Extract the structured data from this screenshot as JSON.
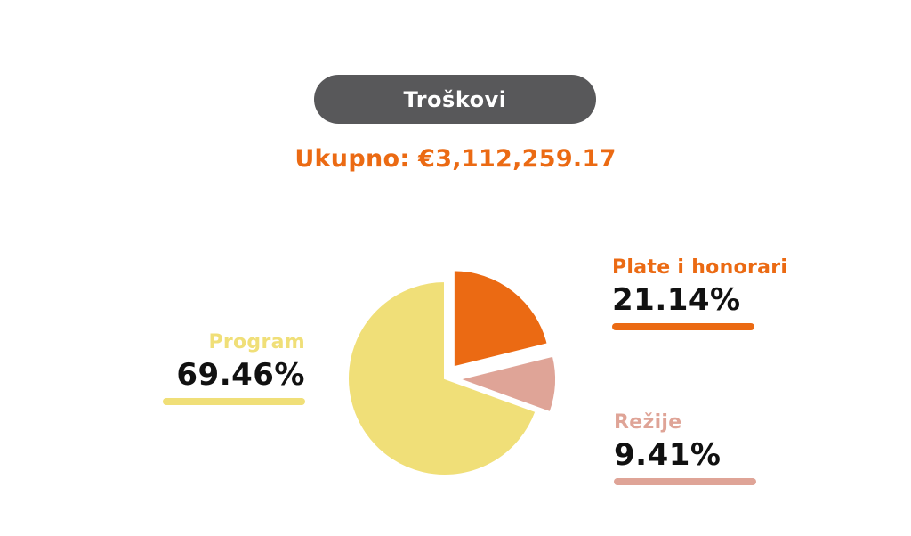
{
  "header": {
    "title": "Troškovi",
    "total": "Ukupno: €3,112,259.17"
  },
  "chart_data": {
    "type": "pie",
    "title": "Troškovi",
    "subtitle": "Ukupno: €3,112,259.17",
    "slices": [
      {
        "name": "Plate i honorari",
        "value": 21.14,
        "label": "21.14%",
        "color": "#eb6a13"
      },
      {
        "name": "Režije",
        "value": 9.41,
        "label": "9.41%",
        "color": "#dfa497"
      },
      {
        "name": "Program",
        "value": 69.46,
        "label": "69.46%",
        "color": "#f0df78"
      }
    ],
    "start_angle_deg": 0,
    "direction": "clockwise",
    "exploded": [
      "Plate i honorari",
      "Režije"
    ],
    "legend": "none",
    "grid": false
  }
}
